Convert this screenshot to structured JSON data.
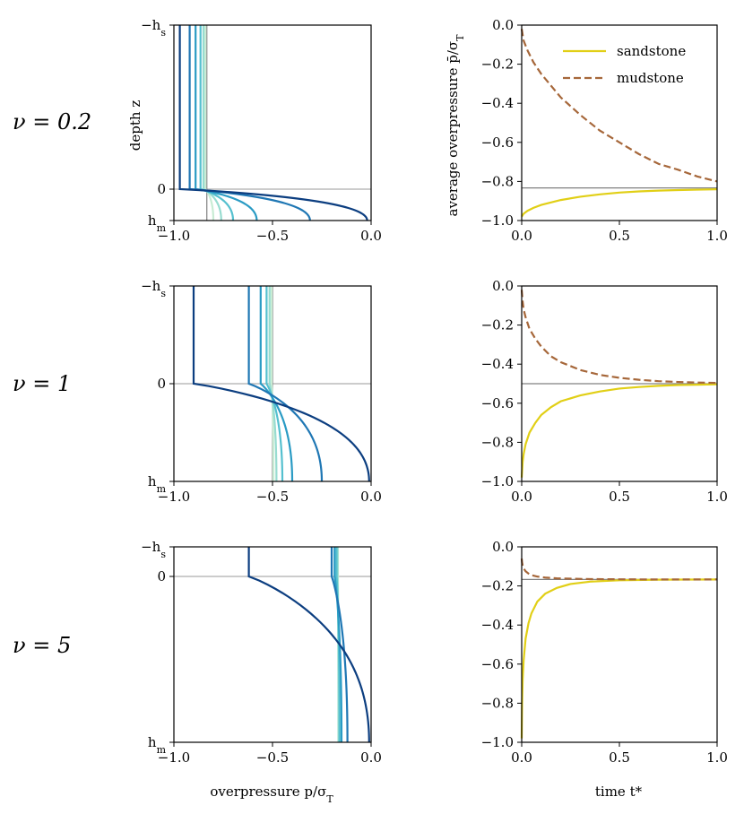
{
  "figure": {
    "row_labels": [
      "ν = 0.2",
      "ν = 1",
      "ν = 5"
    ],
    "left_xlabel": "overpressure p/σ",
    "left_xlabel_sub": "T",
    "left_ylabel": "depth z",
    "right_xlabel": "time t*",
    "right_ylabel": "average overpressure p̄/σ",
    "right_ylabel_sub": "T",
    "ytick_top": "−h",
    "ytick_top_sub": "s",
    "ytick_zero": "0",
    "ytick_bottom": "h",
    "ytick_bottom_sub": "m",
    "legend": {
      "sandstone": "sandstone",
      "mudstone": "mudstone"
    },
    "colors": {
      "sandstone": "#e1cf16",
      "mudstone": "#a6673a",
      "reference": "#808080",
      "zero_line": "#bbbbbb",
      "profiles": [
        "#0c3e80",
        "#1f77b4",
        "#2a9bc4",
        "#55c0cf",
        "#98dcd0",
        "#c8ecd4"
      ]
    }
  },
  "chart_data": [
    {
      "type": "line",
      "panel": "profile",
      "nu": 0.2,
      "title": "",
      "xlabel": "overpressure p/σT",
      "ylabel": "depth z",
      "xlim": [
        -1.0,
        0.0
      ],
      "xticks": [
        "−1.0",
        "−0.5",
        "0.0"
      ],
      "ylim": [
        -1.0,
        0.2
      ],
      "yticks": [
        "−hs",
        "0",
        "hm"
      ],
      "reference_pressure": -0.833,
      "series": [
        {
          "name": "t1",
          "sand": -0.97,
          "mud_top": -0.97,
          "mud_bottom": -0.02
        },
        {
          "name": "t2",
          "sand": -0.92,
          "mud_top": -0.92,
          "mud_bottom": -0.31
        },
        {
          "name": "t3",
          "sand": -0.89,
          "mud_top": -0.89,
          "mud_bottom": -0.58
        },
        {
          "name": "t4",
          "sand": -0.865,
          "mud_top": -0.865,
          "mud_bottom": -0.7
        },
        {
          "name": "t5",
          "sand": -0.85,
          "mud_top": -0.85,
          "mud_bottom": -0.76
        },
        {
          "name": "t6",
          "sand": -0.84,
          "mud_top": -0.84,
          "mud_bottom": -0.8
        }
      ]
    },
    {
      "type": "line",
      "panel": "average",
      "nu": 0.2,
      "title": "",
      "xlabel": "time t*",
      "ylabel": "average overpressure p̄/σT",
      "xlim": [
        0,
        1
      ],
      "ylim": [
        -1.0,
        0.0
      ],
      "xticks": [
        "0.0",
        "0.5",
        "1.0"
      ],
      "yticks": [
        "0.0",
        "−0.2",
        "−0.4",
        "−0.6",
        "−0.8",
        "−1.0"
      ],
      "equilibrium": -0.833,
      "x": [
        0.0,
        0.01,
        0.03,
        0.06,
        0.1,
        0.2,
        0.3,
        0.4,
        0.5,
        0.6,
        0.7,
        0.8,
        0.9,
        1.0
      ],
      "series": [
        {
          "name": "sandstone",
          "values": [
            -0.98,
            -0.965,
            -0.95,
            -0.935,
            -0.92,
            -0.895,
            -0.878,
            -0.866,
            -0.857,
            -0.851,
            -0.847,
            -0.844,
            -0.842,
            -0.84
          ]
        },
        {
          "name": "mudstone",
          "values": [
            -0.02,
            -0.08,
            -0.13,
            -0.19,
            -0.25,
            -0.37,
            -0.46,
            -0.54,
            -0.6,
            -0.66,
            -0.71,
            -0.74,
            -0.775,
            -0.8
          ]
        }
      ],
      "legend_position": "top-right"
    },
    {
      "type": "line",
      "panel": "profile",
      "nu": 1,
      "title": "",
      "xlabel": "overpressure p/σT",
      "ylabel": "",
      "xlim": [
        -1.0,
        0.0
      ],
      "xticks": [
        "−1.0",
        "−0.5",
        "0.0"
      ],
      "ylim": [
        -1.0,
        0.2
      ],
      "yticks": [
        "−hs",
        "0",
        "hm"
      ],
      "reference_pressure": -0.5,
      "series": [
        {
          "name": "t1",
          "sand": -0.9,
          "mud_top": -0.9,
          "mud_bottom": -0.01
        },
        {
          "name": "t2",
          "sand": -0.62,
          "mud_top": -0.62,
          "mud_bottom": -0.25
        },
        {
          "name": "t3",
          "sand": -0.56,
          "mud_top": -0.56,
          "mud_bottom": -0.4
        },
        {
          "name": "t4",
          "sand": -0.53,
          "mud_top": -0.53,
          "mud_bottom": -0.45
        },
        {
          "name": "t5",
          "sand": -0.515,
          "mud_top": -0.515,
          "mud_bottom": -0.48
        },
        {
          "name": "t6",
          "sand": -0.505,
          "mud_top": -0.505,
          "mud_bottom": -0.495
        }
      ]
    },
    {
      "type": "line",
      "panel": "average",
      "nu": 1,
      "title": "",
      "xlabel": "time t*",
      "ylabel": "",
      "xlim": [
        0,
        1
      ],
      "ylim": [
        -1.0,
        0.0
      ],
      "xticks": [
        "0.0",
        "0.5",
        "1.0"
      ],
      "yticks": [
        "0.0",
        "−0.2",
        "−0.4",
        "−0.6",
        "−0.8",
        "−1.0"
      ],
      "equilibrium": -0.5,
      "x": [
        0.0,
        0.005,
        0.01,
        0.02,
        0.04,
        0.07,
        0.1,
        0.15,
        0.2,
        0.3,
        0.4,
        0.5,
        0.6,
        0.7,
        0.8,
        0.9,
        1.0
      ],
      "series": [
        {
          "name": "sandstone",
          "values": [
            -0.98,
            -0.9,
            -0.86,
            -0.81,
            -0.75,
            -0.7,
            -0.66,
            -0.62,
            -0.59,
            -0.56,
            -0.54,
            -0.525,
            -0.517,
            -0.511,
            -0.507,
            -0.505,
            -0.503
          ]
        },
        {
          "name": "mudstone",
          "values": [
            -0.02,
            -0.08,
            -0.12,
            -0.16,
            -0.22,
            -0.27,
            -0.31,
            -0.36,
            -0.39,
            -0.43,
            -0.455,
            -0.47,
            -0.48,
            -0.487,
            -0.491,
            -0.494,
            -0.496
          ]
        }
      ]
    },
    {
      "type": "line",
      "panel": "profile",
      "nu": 5,
      "title": "",
      "xlabel": "overpressure p/σT",
      "ylabel": "",
      "xlim": [
        -1.0,
        0.0
      ],
      "xticks": [
        "−1.0",
        "−0.5",
        "0.0"
      ],
      "ylim": [
        -1.0,
        0.2
      ],
      "yticks": [
        "−hs",
        "0",
        "hm"
      ],
      "reference_pressure": -0.167,
      "series": [
        {
          "name": "t1",
          "sand": -0.62,
          "mud_top": -0.62,
          "mud_bottom": -0.01
        },
        {
          "name": "t2",
          "sand": -0.2,
          "mud_top": -0.2,
          "mud_bottom": -0.12
        },
        {
          "name": "t3",
          "sand": -0.185,
          "mud_top": -0.185,
          "mud_bottom": -0.15
        },
        {
          "name": "t4",
          "sand": -0.175,
          "mud_top": -0.175,
          "mud_bottom": -0.16
        },
        {
          "name": "t5",
          "sand": -0.17,
          "mud_top": -0.17,
          "mud_bottom": -0.165
        },
        {
          "name": "t6",
          "sand": -0.168,
          "mud_top": -0.168,
          "mud_bottom": -0.166
        }
      ]
    },
    {
      "type": "line",
      "panel": "average",
      "nu": 5,
      "title": "",
      "xlabel": "time t*",
      "ylabel": "",
      "xlim": [
        0,
        1
      ],
      "ylim": [
        -1.0,
        0.0
      ],
      "xticks": [
        "0.0",
        "0.5",
        "1.0"
      ],
      "yticks": [
        "0.0",
        "−0.2",
        "−0.4",
        "−0.6",
        "−0.8",
        "−1.0"
      ],
      "equilibrium": -0.167,
      "x": [
        0.0,
        0.002,
        0.005,
        0.01,
        0.02,
        0.035,
        0.05,
        0.08,
        0.12,
        0.18,
        0.25,
        0.35,
        0.5,
        0.7,
        1.0
      ],
      "series": [
        {
          "name": "sandstone",
          "values": [
            -0.98,
            -0.8,
            -0.68,
            -0.58,
            -0.47,
            -0.39,
            -0.34,
            -0.28,
            -0.24,
            -0.21,
            -0.19,
            -0.178,
            -0.171,
            -0.168,
            -0.167
          ]
        },
        {
          "name": "mudstone",
          "values": [
            -0.06,
            -0.08,
            -0.095,
            -0.11,
            -0.125,
            -0.137,
            -0.145,
            -0.152,
            -0.157,
            -0.161,
            -0.163,
            -0.165,
            -0.166,
            -0.167,
            -0.167
          ]
        }
      ]
    }
  ]
}
